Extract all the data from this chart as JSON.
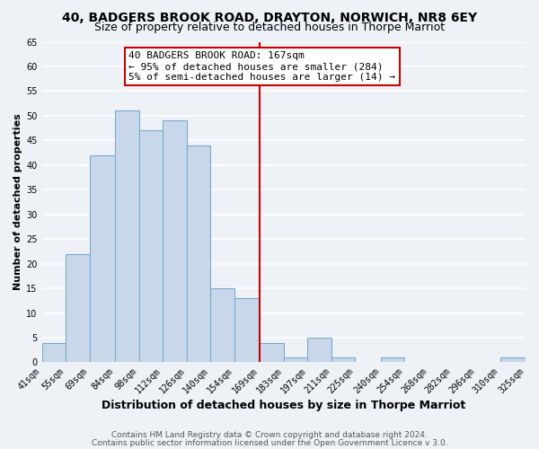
{
  "title": "40, BADGERS BROOK ROAD, DRAYTON, NORWICH, NR8 6EY",
  "subtitle": "Size of property relative to detached houses in Thorpe Marriot",
  "xlabel": "Distribution of detached houses by size in Thorpe Marriot",
  "ylabel": "Number of detached properties",
  "bin_edges": [
    41,
    55,
    69,
    84,
    98,
    112,
    126,
    140,
    154,
    169,
    183,
    197,
    211,
    225,
    240,
    254,
    268,
    282,
    296,
    310,
    325
  ],
  "counts": [
    4,
    22,
    42,
    51,
    47,
    49,
    44,
    15,
    13,
    4,
    1,
    5,
    1,
    0,
    1,
    0,
    0,
    0,
    0,
    1
  ],
  "bar_color": "#c8d8ea",
  "bar_edgecolor": "#7aaad0",
  "reference_line_x": 169,
  "reference_line_color": "#cc0000",
  "ylim": [
    0,
    65
  ],
  "yticks": [
    0,
    5,
    10,
    15,
    20,
    25,
    30,
    35,
    40,
    45,
    50,
    55,
    60,
    65
  ],
  "xtick_labels": [
    "41sqm",
    "55sqm",
    "69sqm",
    "84sqm",
    "98sqm",
    "112sqm",
    "126sqm",
    "140sqm",
    "154sqm",
    "169sqm",
    "183sqm",
    "197sqm",
    "211sqm",
    "225sqm",
    "240sqm",
    "254sqm",
    "268sqm",
    "282sqm",
    "296sqm",
    "310sqm",
    "325sqm"
  ],
  "annotation_title": "40 BADGERS BROOK ROAD: 167sqm",
  "annotation_line1": "← 95% of detached houses are smaller (284)",
  "annotation_line2": "5% of semi-detached houses are larger (14) →",
  "footer1": "Contains HM Land Registry data © Crown copyright and database right 2024.",
  "footer2": "Contains public sector information licensed under the Open Government Licence v 3.0.",
  "bg_color": "#eef2f7",
  "grid_color": "#ffffff",
  "title_fontsize": 10,
  "subtitle_fontsize": 9,
  "xlabel_fontsize": 9,
  "ylabel_fontsize": 8,
  "tick_fontsize": 7,
  "annotation_fontsize": 8,
  "footer_fontsize": 6.5
}
